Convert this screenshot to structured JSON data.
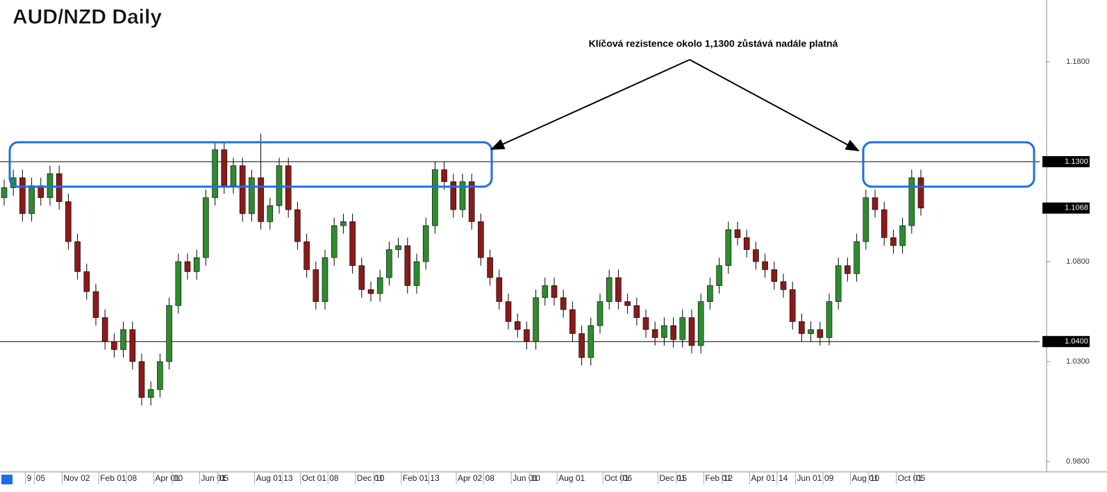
{
  "chart_data": {
    "type": "candlestick",
    "title": "AUD/NZD Daily",
    "annotation": "Klíčová rezistence okolo 1,1300 zůstává nadále platná",
    "categories": [
      null,
      null,
      null,
      "9",
      "05",
      null,
      null,
      "Nov 02",
      null,
      null,
      null,
      "Feb 01",
      null,
      null,
      "08",
      null,
      null,
      "Apr 01",
      null,
      "10",
      null,
      null,
      "Jun 01",
      null,
      "05",
      null,
      null,
      null,
      "Aug 01",
      null,
      null,
      "13",
      null,
      "Oct 01",
      null,
      null,
      "08",
      null,
      null,
      "Dec 01",
      null,
      "10",
      null,
      null,
      "Feb 01",
      null,
      null,
      "13",
      null,
      null,
      "Apr 02",
      null,
      null,
      "08",
      null,
      null,
      "Jun 01",
      null,
      "10",
      null,
      null,
      "Aug 01",
      null,
      null,
      null,
      null,
      "Oct 01",
      null,
      "06",
      null,
      null,
      null,
      "Dec 01",
      null,
      "15",
      null,
      null,
      "Feb 01",
      null,
      "12",
      null,
      null,
      "Apr 01",
      null,
      null,
      "14",
      null,
      "Jun 01",
      null,
      null,
      "09",
      null,
      null,
      "Aug 01",
      null,
      "10",
      null,
      null,
      "Oct 01",
      null,
      "05"
    ],
    "open": [
      1.112,
      1.117,
      1.122,
      1.104,
      1.118,
      1.112,
      1.124,
      1.11,
      1.09,
      1.075,
      1.065,
      1.052,
      1.04,
      1.036,
      1.046,
      1.03,
      1.012,
      1.016,
      1.03,
      1.058,
      1.08,
      1.075,
      1.082,
      1.112,
      1.136,
      1.118,
      1.128,
      1.104,
      1.122,
      1.1,
      1.108,
      1.128,
      1.106,
      1.09,
      1.076,
      1.06,
      1.082,
      1.098,
      1.1,
      1.078,
      1.066,
      1.064,
      1.072,
      1.086,
      1.088,
      1.068,
      1.08,
      1.098,
      1.126,
      1.12,
      1.106,
      1.12,
      1.1,
      1.082,
      1.072,
      1.06,
      1.05,
      1.046,
      1.04,
      1.062,
      1.068,
      1.062,
      1.056,
      1.044,
      1.032,
      1.048,
      1.06,
      1.072,
      1.06,
      1.058,
      1.052,
      1.046,
      1.042,
      1.048,
      1.041,
      1.052,
      1.038,
      1.06,
      1.068,
      1.078,
      1.096,
      1.092,
      1.086,
      1.08,
      1.076,
      1.07,
      1.066,
      1.05,
      1.044,
      1.046,
      1.042,
      1.06,
      1.078,
      1.074,
      1.09,
      1.112,
      1.106,
      1.092,
      1.088,
      1.098,
      1.122
    ],
    "high": [
      1.121,
      1.126,
      1.126,
      1.122,
      1.122,
      1.128,
      1.128,
      1.114,
      1.094,
      1.079,
      1.069,
      1.056,
      1.044,
      1.05,
      1.05,
      1.034,
      1.02,
      1.034,
      1.062,
      1.084,
      1.084,
      1.086,
      1.116,
      1.14,
      1.14,
      1.132,
      1.132,
      1.126,
      1.144,
      1.112,
      1.132,
      1.132,
      1.11,
      1.094,
      1.08,
      1.086,
      1.102,
      1.104,
      1.104,
      1.082,
      1.07,
      1.076,
      1.09,
      1.092,
      1.092,
      1.084,
      1.102,
      1.13,
      1.13,
      1.124,
      1.124,
      1.124,
      1.104,
      1.086,
      1.076,
      1.064,
      1.054,
      1.05,
      1.066,
      1.072,
      1.072,
      1.066,
      1.06,
      1.048,
      1.052,
      1.064,
      1.076,
      1.076,
      1.064,
      1.062,
      1.056,
      1.05,
      1.052,
      1.052,
      1.056,
      1.056,
      1.064,
      1.072,
      1.082,
      1.1,
      1.1,
      1.096,
      1.09,
      1.084,
      1.08,
      1.074,
      1.07,
      1.054,
      1.05,
      1.05,
      1.064,
      1.082,
      1.082,
      1.094,
      1.116,
      1.116,
      1.11,
      1.096,
      1.102,
      1.126,
      1.126
    ],
    "low": [
      1.108,
      1.113,
      1.1,
      1.1,
      1.108,
      1.108,
      1.106,
      1.086,
      1.071,
      1.061,
      1.048,
      1.036,
      1.032,
      1.032,
      1.026,
      1.008,
      1.008,
      1.012,
      1.026,
      1.054,
      1.071,
      1.071,
      1.078,
      1.108,
      1.114,
      1.114,
      1.1,
      1.1,
      1.096,
      1.096,
      1.104,
      1.102,
      1.086,
      1.072,
      1.056,
      1.056,
      1.078,
      1.094,
      1.074,
      1.062,
      1.06,
      1.06,
      1.068,
      1.082,
      1.064,
      1.064,
      1.076,
      1.094,
      1.116,
      1.102,
      1.102,
      1.096,
      1.078,
      1.068,
      1.056,
      1.046,
      1.042,
      1.036,
      1.036,
      1.058,
      1.058,
      1.052,
      1.04,
      1.028,
      1.028,
      1.044,
      1.056,
      1.056,
      1.054,
      1.048,
      1.042,
      1.038,
      1.038,
      1.037,
      1.037,
      1.034,
      1.034,
      1.056,
      1.064,
      1.074,
      1.088,
      1.082,
      1.076,
      1.072,
      1.066,
      1.062,
      1.046,
      1.04,
      1.04,
      1.038,
      1.038,
      1.056,
      1.07,
      1.07,
      1.086,
      1.102,
      1.088,
      1.084,
      1.084,
      1.094,
      1.103
    ],
    "close": [
      1.117,
      1.122,
      1.104,
      1.118,
      1.112,
      1.124,
      1.11,
      1.09,
      1.075,
      1.065,
      1.052,
      1.04,
      1.036,
      1.046,
      1.03,
      1.012,
      1.016,
      1.03,
      1.058,
      1.08,
      1.075,
      1.082,
      1.112,
      1.136,
      1.118,
      1.128,
      1.104,
      1.122,
      1.1,
      1.108,
      1.128,
      1.106,
      1.09,
      1.076,
      1.06,
      1.082,
      1.098,
      1.1,
      1.078,
      1.066,
      1.064,
      1.072,
      1.086,
      1.088,
      1.068,
      1.08,
      1.098,
      1.126,
      1.12,
      1.106,
      1.12,
      1.1,
      1.082,
      1.072,
      1.06,
      1.05,
      1.046,
      1.04,
      1.062,
      1.068,
      1.062,
      1.056,
      1.044,
      1.032,
      1.048,
      1.06,
      1.072,
      1.06,
      1.058,
      1.052,
      1.046,
      1.042,
      1.048,
      1.041,
      1.052,
      1.038,
      1.06,
      1.068,
      1.078,
      1.096,
      1.092,
      1.086,
      1.08,
      1.076,
      1.07,
      1.066,
      1.05,
      1.044,
      1.046,
      1.042,
      1.06,
      1.078,
      1.074,
      1.09,
      1.112,
      1.106,
      1.092,
      1.088,
      1.098,
      1.122,
      1.1068
    ],
    "up_color": "#2e8b2e",
    "down_color": "#8b1a1a",
    "ylim": [
      0.9748,
      1.2109
    ],
    "yticks": [
      {
        "value": 1.18,
        "label": "1.1800"
      },
      {
        "value": 1.08,
        "label": "1.0800"
      },
      {
        "value": 1.03,
        "label": "1.0300"
      },
      {
        "value": 0.98,
        "label": "0.9800"
      }
    ],
    "levels": [
      {
        "value": 1.13,
        "label": "1.1300"
      },
      {
        "value": 1.04,
        "label": "1.0400"
      }
    ],
    "last_price": {
      "value": 1.1068,
      "label": "1.1068"
    }
  }
}
